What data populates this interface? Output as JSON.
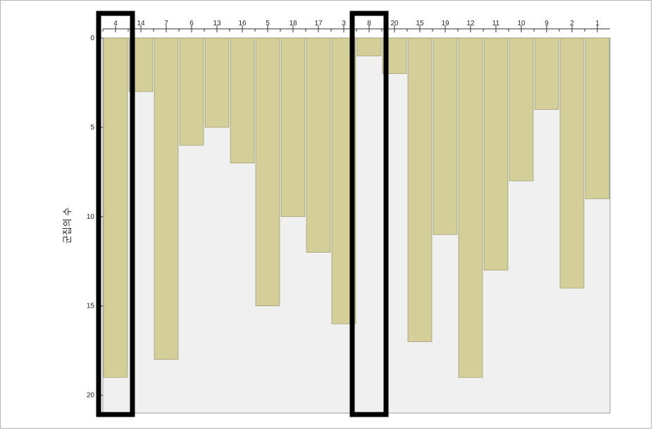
{
  "chart_data": {
    "type": "bar",
    "title": "",
    "xlabel": "",
    "ylabel": "군집의 수",
    "ylim": [
      0,
      21
    ],
    "yticks": [
      0,
      5,
      10,
      15,
      20
    ],
    "categories": [
      "4",
      "14",
      "7",
      "6",
      "13",
      "16",
      "5",
      "18",
      "17",
      "3",
      "8",
      "20",
      "15",
      "19",
      "12",
      "11",
      "10",
      "9",
      "2",
      "1"
    ],
    "values": [
      19,
      3,
      18,
      6,
      5,
      7,
      15,
      10,
      12,
      16,
      1,
      2,
      17,
      11,
      19,
      13,
      8,
      4,
      14,
      9
    ],
    "highlighted": [
      "4",
      "8"
    ],
    "colors": {
      "bar": "#d4cf98",
      "bar_edge": "#8d8a60",
      "background": "#f0f0f0",
      "highlight_box": "#000000"
    }
  }
}
